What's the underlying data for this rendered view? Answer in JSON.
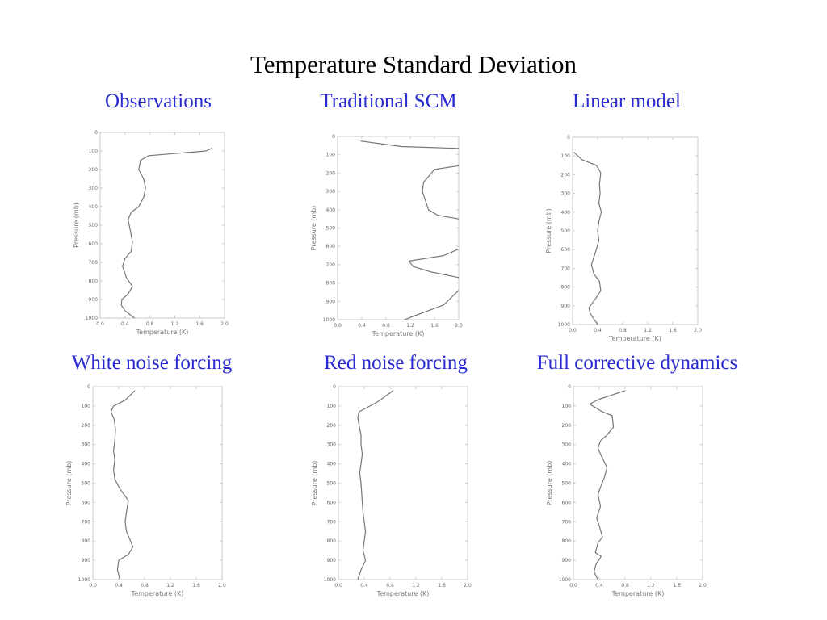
{
  "title": "Temperature Standard Deviation",
  "chart_data": [
    {
      "type": "line",
      "title": "Observations",
      "xlabel": "Temperature (K)",
      "ylabel": "Pressure (mb)",
      "xlim": [
        0.0,
        2.0
      ],
      "ylim": [
        0,
        1000
      ],
      "y_inverted": true,
      "xticks": [
        "0.0",
        "0.4",
        "0.8",
        "1.2",
        "1.6",
        "2.0"
      ],
      "yticks": [
        "0",
        "100",
        "200",
        "300",
        "400",
        "500",
        "600",
        "700",
        "800",
        "900",
        "1000"
      ],
      "series": [
        {
          "x": [
            1.8,
            1.7,
            0.78,
            0.65,
            0.62,
            0.7,
            0.73,
            0.7,
            0.62,
            0.5,
            0.45,
            0.48,
            0.52,
            0.5,
            0.4,
            0.36,
            0.42,
            0.52,
            0.45,
            0.35,
            0.34,
            0.4,
            0.55
          ],
          "y": [
            85,
            100,
            125,
            150,
            200,
            250,
            300,
            350,
            400,
            430,
            470,
            520,
            590,
            640,
            680,
            720,
            780,
            830,
            870,
            900,
            930,
            960,
            1000
          ]
        }
      ]
    },
    {
      "type": "line",
      "title": "Traditional SCM",
      "xlabel": "Temperature (K)",
      "ylabel": "Pressure (mb)",
      "xlim": [
        0.0,
        2.0
      ],
      "ylim": [
        0,
        1000
      ],
      "y_inverted": true,
      "xticks": [
        "0.0",
        "0.4",
        "0.8",
        "1.2",
        "1.6",
        "2.0"
      ],
      "yticks": [
        "0",
        "100",
        "200",
        "300",
        "400",
        "500",
        "600",
        "700",
        "800",
        "900",
        "1000"
      ],
      "series": [
        {
          "x": [
            0.38,
            1.05,
            2.0,
            null,
            2.0,
            1.6,
            1.42,
            1.4,
            1.45,
            1.5,
            1.65,
            2.0,
            null,
            2.0,
            1.75,
            1.18,
            1.25,
            1.55,
            2.0,
            null,
            2.0,
            1.75,
            1.1
          ],
          "y": [
            25,
            55,
            65,
            null,
            160,
            180,
            250,
            300,
            350,
            400,
            430,
            450,
            null,
            615,
            650,
            680,
            710,
            740,
            770,
            null,
            840,
            920,
            1000
          ]
        }
      ]
    },
    {
      "type": "line",
      "title": "Linear model",
      "xlabel": "Temperature (K)",
      "ylabel": "Pressure (mb)",
      "xlim": [
        0.0,
        2.0
      ],
      "ylim": [
        0,
        1000
      ],
      "y_inverted": true,
      "xticks": [
        "0.0",
        "0.4",
        "0.8",
        "1.2",
        "1.6",
        "2.0"
      ],
      "yticks": [
        "0",
        "100",
        "200",
        "300",
        "400",
        "500",
        "600",
        "700",
        "800",
        "900",
        "1000"
      ],
      "series": [
        {
          "x": [
            0.02,
            0.15,
            0.38,
            0.45,
            0.43,
            0.44,
            0.42,
            0.46,
            0.42,
            0.4,
            0.42,
            0.38,
            0.3,
            0.34,
            0.43,
            0.45,
            0.35,
            0.26,
            0.28,
            0.4
          ],
          "y": [
            80,
            120,
            150,
            190,
            250,
            300,
            350,
            400,
            450,
            500,
            550,
            600,
            680,
            730,
            770,
            820,
            870,
            910,
            940,
            1000
          ]
        }
      ]
    },
    {
      "type": "line",
      "title": "White noise forcing",
      "xlabel": "Temperature (K)",
      "ylabel": "Pressure (mb)",
      "xlim": [
        0.0,
        2.0
      ],
      "ylim": [
        0,
        1000
      ],
      "y_inverted": true,
      "xticks": [
        "0.0",
        "0.4",
        "0.8",
        "1.2",
        "1.6",
        "2.0"
      ],
      "yticks": [
        "0",
        "100",
        "200",
        "300",
        "400",
        "500",
        "600",
        "700",
        "800",
        "900",
        "1000"
      ],
      "series": [
        {
          "x": [
            0.65,
            0.5,
            0.32,
            0.28,
            0.33,
            0.35,
            0.34,
            0.32,
            0.34,
            0.32,
            0.34,
            0.42,
            0.55,
            0.52,
            0.5,
            0.52,
            0.62,
            0.55,
            0.4,
            0.38,
            0.42
          ],
          "y": [
            20,
            70,
            100,
            130,
            170,
            220,
            280,
            330,
            380,
            430,
            480,
            530,
            590,
            650,
            700,
            750,
            830,
            870,
            900,
            950,
            1000
          ]
        }
      ]
    },
    {
      "type": "line",
      "title": "Red noise forcing",
      "xlabel": "Temperature (K)",
      "ylabel": "Pressure (mb)",
      "xlim": [
        0.0,
        2.0
      ],
      "ylim": [
        0,
        1000
      ],
      "y_inverted": true,
      "xticks": [
        "0.0",
        "0.4",
        "0.8",
        "1.2",
        "1.6",
        "2.0"
      ],
      "yticks": [
        "0",
        "100",
        "200",
        "300",
        "400",
        "500",
        "600",
        "700",
        "800",
        "900",
        "1000"
      ],
      "series": [
        {
          "x": [
            0.85,
            0.6,
            0.32,
            0.3,
            0.32,
            0.35,
            0.35,
            0.37,
            0.35,
            0.33,
            0.35,
            0.36,
            0.37,
            0.38,
            0.4,
            0.42,
            0.4,
            0.38,
            0.42,
            0.35,
            0.3
          ],
          "y": [
            20,
            80,
            130,
            160,
            200,
            250,
            300,
            350,
            400,
            450,
            500,
            550,
            600,
            650,
            700,
            750,
            800,
            850,
            900,
            950,
            1000
          ]
        }
      ]
    },
    {
      "type": "line",
      "title": "Full corrective dynamics",
      "xlabel": "Temperature (K)",
      "ylabel": "Pressure (mb)",
      "xlim": [
        0.0,
        2.0
      ],
      "ylim": [
        0,
        1000
      ],
      "y_inverted": true,
      "xticks": [
        "0.0",
        "0.4",
        "0.8",
        "1.2",
        "1.6",
        "2.0"
      ],
      "yticks": [
        "0",
        "100",
        "200",
        "300",
        "400",
        "500",
        "600",
        "700",
        "800",
        "900",
        "1000"
      ],
      "series": [
        {
          "x": [
            0.8,
            0.4,
            0.25,
            0.45,
            0.6,
            0.62,
            0.52,
            0.42,
            0.38,
            0.45,
            0.52,
            0.48,
            0.42,
            0.38,
            0.42,
            0.36,
            0.4,
            0.45,
            0.38,
            0.34,
            0.43,
            0.35,
            0.32,
            0.38
          ],
          "y": [
            20,
            65,
            90,
            130,
            150,
            210,
            250,
            280,
            320,
            370,
            420,
            470,
            520,
            560,
            620,
            680,
            720,
            780,
            810,
            860,
            880,
            920,
            960,
            1000
          ]
        }
      ]
    }
  ]
}
